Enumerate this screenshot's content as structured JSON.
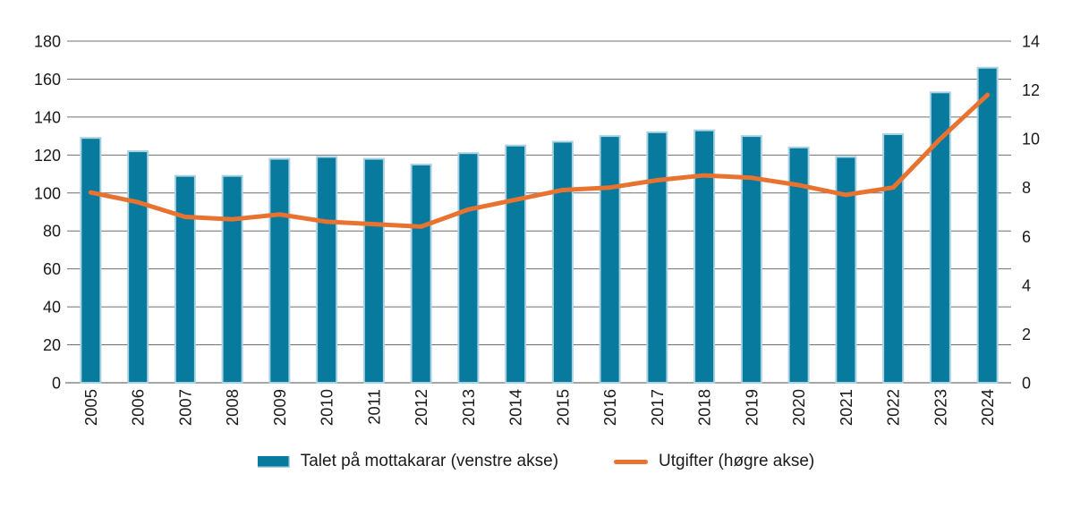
{
  "figure": {
    "background_color": "#ffffff",
    "text_color": "#1a1a1a"
  },
  "chart_data": {
    "type": "bar+line combo",
    "title": "",
    "categories": [
      "2005",
      "2006",
      "2007",
      "2008",
      "2009",
      "2010",
      "2011",
      "2012",
      "2013",
      "2014",
      "2015",
      "2016",
      "2017",
      "2018",
      "2019",
      "2020",
      "2021",
      "2022",
      "2023",
      "2024"
    ],
    "series": [
      {
        "name": "Talet på mottakarar",
        "legend_label": "Talet på mottakarar (venstre akse)",
        "type": "bar",
        "axis": "left",
        "color": "#087a9e",
        "edge_color": "#a9d2e2",
        "values": [
          129,
          122,
          109,
          109,
          118,
          119,
          118,
          115,
          121,
          125,
          127,
          130,
          132,
          133,
          130,
          124,
          119,
          131,
          153,
          166
        ]
      },
      {
        "name": "Utgifter",
        "legend_label": "Utgifter (høgre akse)",
        "type": "line",
        "axis": "right",
        "color": "#e87330",
        "values": [
          7.8,
          7.4,
          6.8,
          6.7,
          6.9,
          6.6,
          6.5,
          6.4,
          7.1,
          7.5,
          7.9,
          8.0,
          8.3,
          8.5,
          8.4,
          8.1,
          7.7,
          8.0,
          10.0,
          11.8
        ]
      }
    ],
    "left_axis": {
      "min": 0,
      "max": 180,
      "step": 20,
      "tick_labels": [
        "0",
        "20",
        "40",
        "60",
        "80",
        "100",
        "120",
        "140",
        "160",
        "180"
      ]
    },
    "right_axis": {
      "min": 0,
      "max": 14,
      "step": 2,
      "tick_labels": [
        "0",
        "2",
        "4",
        "6",
        "8",
        "10",
        "12",
        "14"
      ]
    },
    "grid": {
      "horizontal": true,
      "color": "#6f6f6f",
      "baseline_color": "#a6a6a6"
    },
    "legend_position": "bottom-center"
  }
}
